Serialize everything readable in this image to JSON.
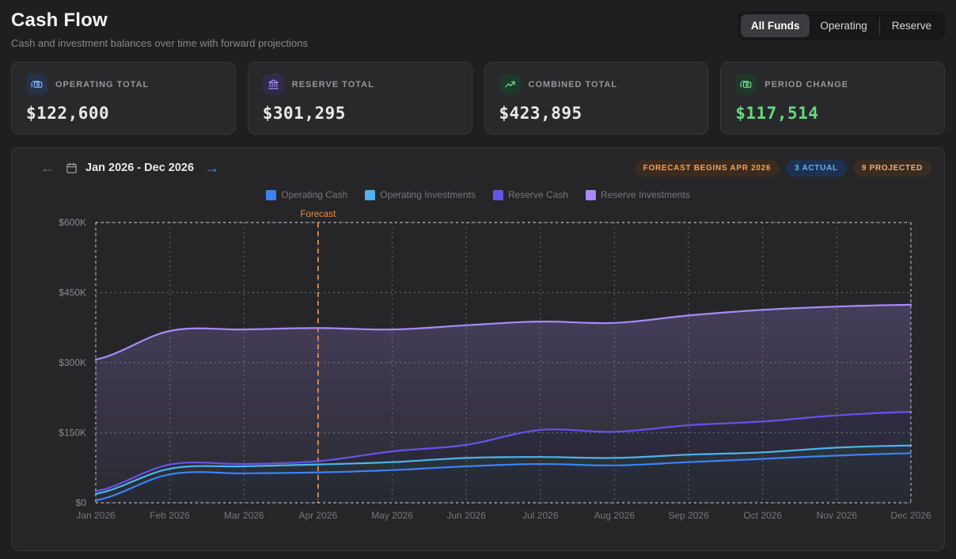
{
  "header": {
    "title": "Cash Flow",
    "subtitle": "Cash and investment balances over time with forward projections"
  },
  "fund_tabs": [
    {
      "label": "All Funds",
      "active": true
    },
    {
      "label": "Operating",
      "active": false
    },
    {
      "label": "Reserve",
      "active": false
    }
  ],
  "stats": [
    {
      "label": "OPERATING TOTAL",
      "value": "$122,600",
      "icon": "banknotes-icon",
      "icon_color": "#7cb1f7",
      "icon_bg": "#263248"
    },
    {
      "label": "RESERVE TOTAL",
      "value": "$301,295",
      "icon": "bank-icon",
      "icon_color": "#a78bfa",
      "icon_bg": "#2f2b49"
    },
    {
      "label": "COMBINED TOTAL",
      "value": "$423,895",
      "icon": "trending-up-icon",
      "icon_color": "#6edc85",
      "icon_bg": "#20382a"
    },
    {
      "label": "PERIOD CHANGE",
      "value": "$117,514",
      "icon": "banknotes-icon",
      "icon_color": "#6edc85",
      "icon_bg": "#20382a",
      "value_color": "#67d97e"
    }
  ],
  "chart_panel": {
    "range_label": "Jan 2026 - Dec 2026",
    "badges": [
      {
        "label": "FORECAST BEGINS APR 2026",
        "color": "#f0a161",
        "bg": "#3a2b1e"
      },
      {
        "label": "3 ACTUAL",
        "color": "#6fb0f2",
        "bg": "#1d3252"
      },
      {
        "label": "9 PROJECTED",
        "color": "#e7ae7e",
        "bg": "#392c20"
      }
    ]
  },
  "chart_data": {
    "type": "area",
    "stacked": true,
    "x": [
      "Jan 2026",
      "Feb 2026",
      "Mar 2026",
      "Apr 2026",
      "May 2026",
      "Jun 2026",
      "Jul 2026",
      "Aug 2026",
      "Sep 2026",
      "Oct 2026",
      "Nov 2026",
      "Dec 2026"
    ],
    "series": [
      {
        "name": "Operating Cash",
        "color": "#3b82f6",
        "values": [
          5000,
          61000,
          63000,
          65000,
          70000,
          78000,
          83000,
          80000,
          87000,
          94000,
          101000,
          106000
        ]
      },
      {
        "name": "Operating Investments",
        "color": "#4fb3ec",
        "values": [
          14000,
          12000,
          15000,
          17000,
          17000,
          18000,
          15000,
          16000,
          16000,
          14000,
          17000,
          16600
        ]
      },
      {
        "name": "Reserve Cash",
        "color": "#6554e8",
        "values": [
          5381,
          9000,
          5000,
          7000,
          23000,
          28000,
          58000,
          56000,
          63000,
          66000,
          69000,
          72000
        ]
      },
      {
        "name": "Reserve Investments",
        "color": "#a78bfa",
        "values": [
          282000,
          286000,
          288000,
          285000,
          261000,
          256000,
          232000,
          233000,
          235000,
          239000,
          233000,
          229295
        ]
      }
    ],
    "ylim": [
      0,
      600000
    ],
    "yticks": [
      {
        "value": 0,
        "label": "$0"
      },
      {
        "value": 150000,
        "label": "$150K"
      },
      {
        "value": 300000,
        "label": "$300K"
      },
      {
        "value": 450000,
        "label": "$450K"
      },
      {
        "value": 600000,
        "label": "$600K"
      }
    ],
    "forecast": {
      "at": "Apr 2026",
      "label": "Forecast",
      "color": "#ed8a3f"
    },
    "grid": "dotted",
    "legend_position": "top"
  }
}
